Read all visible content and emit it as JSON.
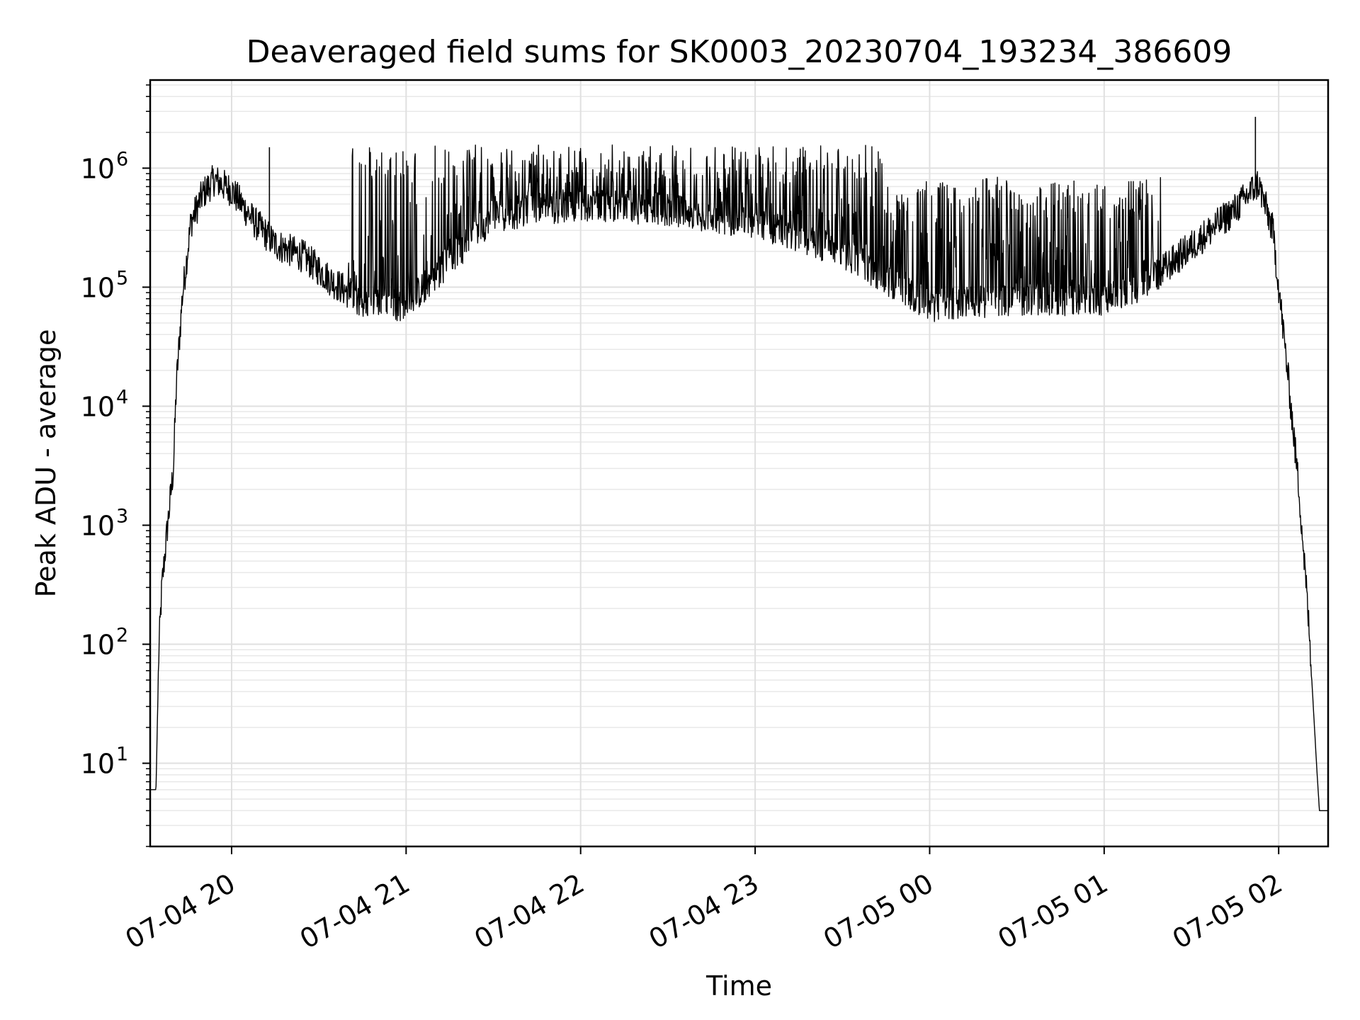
{
  "chart_data": {
    "type": "line",
    "title": "Deaveraged field sums for SK0003_20230704_193234_386609",
    "xlabel": "Time",
    "ylabel": "Peak ADU - average",
    "y_scale": "log",
    "grid": "on (major and minor)",
    "xlim": [
      "2023-07-04 19:32",
      "2023-07-05 02:17"
    ],
    "ylim": [
      2,
      5500000
    ],
    "x_ticks": [
      {
        "t": "2023-07-04 20:00",
        "label": "07-04 20"
      },
      {
        "t": "2023-07-04 21:00",
        "label": "07-04 21"
      },
      {
        "t": "2023-07-04 22:00",
        "label": "07-04 22"
      },
      {
        "t": "2023-07-04 23:00",
        "label": "07-04 23"
      },
      {
        "t": "2023-07-05 00:00",
        "label": "07-05 00"
      },
      {
        "t": "2023-07-05 01:00",
        "label": "07-05 01"
      },
      {
        "t": "2023-07-05 02:00",
        "label": "07-05 02"
      }
    ],
    "y_ticks": [
      {
        "value": 10,
        "base": "10",
        "exp": "1"
      },
      {
        "value": 100,
        "base": "10",
        "exp": "2"
      },
      {
        "value": 1000,
        "base": "10",
        "exp": "3"
      },
      {
        "value": 10000,
        "base": "10",
        "exp": "4"
      },
      {
        "value": 100000,
        "base": "10",
        "exp": "5"
      },
      {
        "value": 1000000,
        "base": "10",
        "exp": "6"
      }
    ],
    "series": [
      {
        "color": "#000000",
        "points": [
          [
            "2023-07-04 19:32",
            6
          ],
          [
            "2023-07-04 19:34",
            6
          ],
          [
            "2023-07-04 19:35",
            90
          ],
          [
            "2023-07-04 19:36",
            300
          ],
          [
            "2023-07-04 19:38",
            1000
          ],
          [
            "2023-07-04 19:40",
            3000
          ],
          [
            "2023-07-04 19:41",
            15000
          ],
          [
            "2023-07-04 19:43",
            80000
          ],
          [
            "2023-07-04 19:46",
            350000
          ],
          [
            "2023-07-04 19:50",
            600000
          ],
          [
            "2023-07-04 19:54",
            800000
          ],
          [
            "2023-07-04 20:00",
            650000
          ],
          [
            "2023-07-04 20:08",
            350000
          ],
          [
            "2023-07-04 20:15",
            230000
          ],
          [
            "2023-07-04 20:25",
            180000
          ],
          [
            "2023-07-04 20:35",
            110000
          ],
          [
            "2023-07-04 20:45",
            75000
          ],
          [
            "2023-07-04 21:00",
            70000
          ],
          [
            "2023-07-04 21:30",
            400000
          ],
          [
            "2023-07-04 22:00",
            500000
          ],
          [
            "2023-07-04 22:30",
            450000
          ],
          [
            "2023-07-04 23:00",
            350000
          ],
          [
            "2023-07-04 23:30",
            200000
          ],
          [
            "2023-07-05 00:00",
            70000
          ],
          [
            "2023-07-05 00:30",
            80000
          ],
          [
            "2023-07-05 01:00",
            75000
          ],
          [
            "2023-07-05 01:15",
            110000
          ],
          [
            "2023-07-05 01:30",
            220000
          ],
          [
            "2023-07-05 01:45",
            450000
          ],
          [
            "2023-07-05 01:53",
            750000
          ],
          [
            "2023-07-05 01:58",
            300000
          ],
          [
            "2023-07-05 02:03",
            20000
          ],
          [
            "2023-07-05 02:07",
            2000
          ],
          [
            "2023-07-05 02:10",
            200
          ],
          [
            "2023-07-05 02:13",
            10
          ],
          [
            "2023-07-05 02:14",
            4
          ],
          [
            "2023-07-05 02:17",
            4
          ]
        ],
        "spike_ranges": [
          {
            "from": "2023-07-04 20:40",
            "to": "2023-07-04 23:45",
            "peak": 1500000
          },
          {
            "from": "2023-07-04 23:45",
            "to": "2023-07-05 01:20",
            "peak": 800000
          }
        ],
        "isolated_peaks": [
          [
            "2023-07-04 20:13",
            1500000
          ],
          [
            "2023-07-05 01:52",
            2700000
          ]
        ]
      }
    ]
  }
}
